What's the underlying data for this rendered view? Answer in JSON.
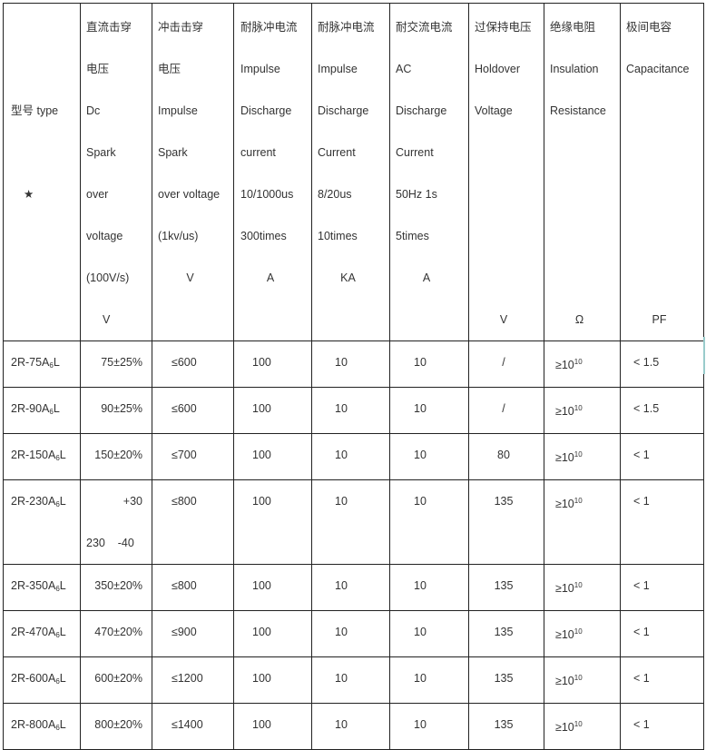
{
  "headers": [
    {
      "lines": [
        "",
        "",
        "型号  type",
        "",
        "★"
      ],
      "align": "left",
      "pad": 8
    },
    {
      "lines": [
        "直流击穿",
        "电压",
        "Dc",
        "Spark",
        "over",
        "voltage",
        "(100V/s)",
        "V"
      ],
      "align": "left",
      "pad": 6
    },
    {
      "lines": [
        "冲击击穿",
        "电压",
        "Impulse",
        "Spark",
        "over voltage",
        "(1kv/us)",
        "V"
      ],
      "align": "left",
      "pad": 6
    },
    {
      "lines": [
        "耐脉冲电流",
        "Impulse",
        "Discharge",
        "current",
        "10/1000us",
        "300times",
        "A"
      ],
      "align": "left",
      "pad": 7
    },
    {
      "lines": [
        "耐脉冲电流",
        "Impulse",
        "Discharge",
        "Current",
        "8/20us",
        "10times",
        "KA"
      ],
      "align": "left",
      "pad": 6
    },
    {
      "lines": [
        "耐交流电流",
        "AC",
        "Discharge",
        "Current",
        "50Hz 1s",
        "5times",
        "A"
      ],
      "align": "left",
      "pad": 6
    },
    {
      "lines": [
        "过保持电压",
        "Holdover",
        "Voltage",
        "",
        "",
        "",
        "",
        "V"
      ],
      "align": "left",
      "pad": 6
    },
    {
      "lines": [
        "绝缘电阻",
        "Insulation",
        "Resistance",
        "",
        "",
        "",
        "",
        "Ω"
      ],
      "align": "left",
      "pad": 6
    },
    {
      "lines": [
        "极间电容",
        "Capacitance",
        "",
        "",
        "",
        "",
        "",
        "PF"
      ],
      "align": "left",
      "pad": 6
    }
  ],
  "rows": [
    {
      "model": {
        "prefix": "2R-75A",
        "sub": "6",
        "suffix": "L"
      },
      "dc": "75±25%",
      "impulse": "≤600",
      "imp_current": "100",
      "imp_8_20": "10",
      "ac": "10",
      "holdover": "/",
      "insulation": {
        "base": "≥10",
        "exp": "10"
      },
      "capacitance": "< 1.5"
    },
    {
      "model": {
        "prefix": "2R-90A",
        "sub": "6",
        "suffix": "L"
      },
      "dc": "90±25%",
      "impulse": "≤600",
      "imp_current": "100",
      "imp_8_20": "10",
      "ac": "10",
      "holdover": "/",
      "insulation": {
        "base": "≥10",
        "exp": "10"
      },
      "capacitance": "< 1.5"
    },
    {
      "model": {
        "prefix": "2R-150A",
        "sub": "6",
        "suffix": "L"
      },
      "dc": "150±20%",
      "impulse": "≤700",
      "imp_current": "100",
      "imp_8_20": "10",
      "ac": "10",
      "holdover": "80",
      "insulation": {
        "base": "≥10",
        "exp": "10"
      },
      "capacitance": "< 1"
    },
    {
      "model": {
        "prefix": "2R-230A",
        "sub": "6",
        "suffix": "L"
      },
      "dc": "+30",
      "dc2": "230    -40",
      "impulse": "≤800",
      "imp_current": "100",
      "imp_8_20": "10",
      "ac": "10",
      "holdover": "135",
      "insulation": {
        "base": "≥10",
        "exp": "10"
      },
      "capacitance": "< 1"
    },
    {
      "model": {
        "prefix": "2R-350A",
        "sub": "6",
        "suffix": "L"
      },
      "dc": "350±20%",
      "impulse": "≤800",
      "imp_current": "100",
      "imp_8_20": "10",
      "ac": "10",
      "holdover": "135",
      "insulation": {
        "base": "≥10",
        "exp": "10"
      },
      "capacitance": "< 1"
    },
    {
      "model": {
        "prefix": "2R-470A",
        "sub": "6",
        "suffix": "L"
      },
      "dc": "470±20%",
      "impulse": "≤900",
      "imp_current": "100",
      "imp_8_20": "10",
      "ac": "10",
      "holdover": "135",
      "insulation": {
        "base": "≥10",
        "exp": "10"
      },
      "capacitance": "< 1"
    },
    {
      "model": {
        "prefix": "2R-600A",
        "sub": "6",
        "suffix": "L"
      },
      "dc": "600±20%",
      "impulse": "≤1200",
      "imp_current": "100",
      "imp_8_20": "10",
      "ac": "10",
      "holdover": "135",
      "insulation": {
        "base": "≥10",
        "exp": "10"
      },
      "capacitance": "< 1"
    },
    {
      "model": {
        "prefix": "2R-800A",
        "sub": "6",
        "suffix": "L"
      },
      "dc": "800±20%",
      "impulse": "≤1400",
      "imp_current": "100",
      "imp_8_20": "10",
      "ac": "10",
      "holdover": "135",
      "insulation": {
        "base": "≥10",
        "exp": "10"
      },
      "capacitance": "< 1"
    }
  ]
}
